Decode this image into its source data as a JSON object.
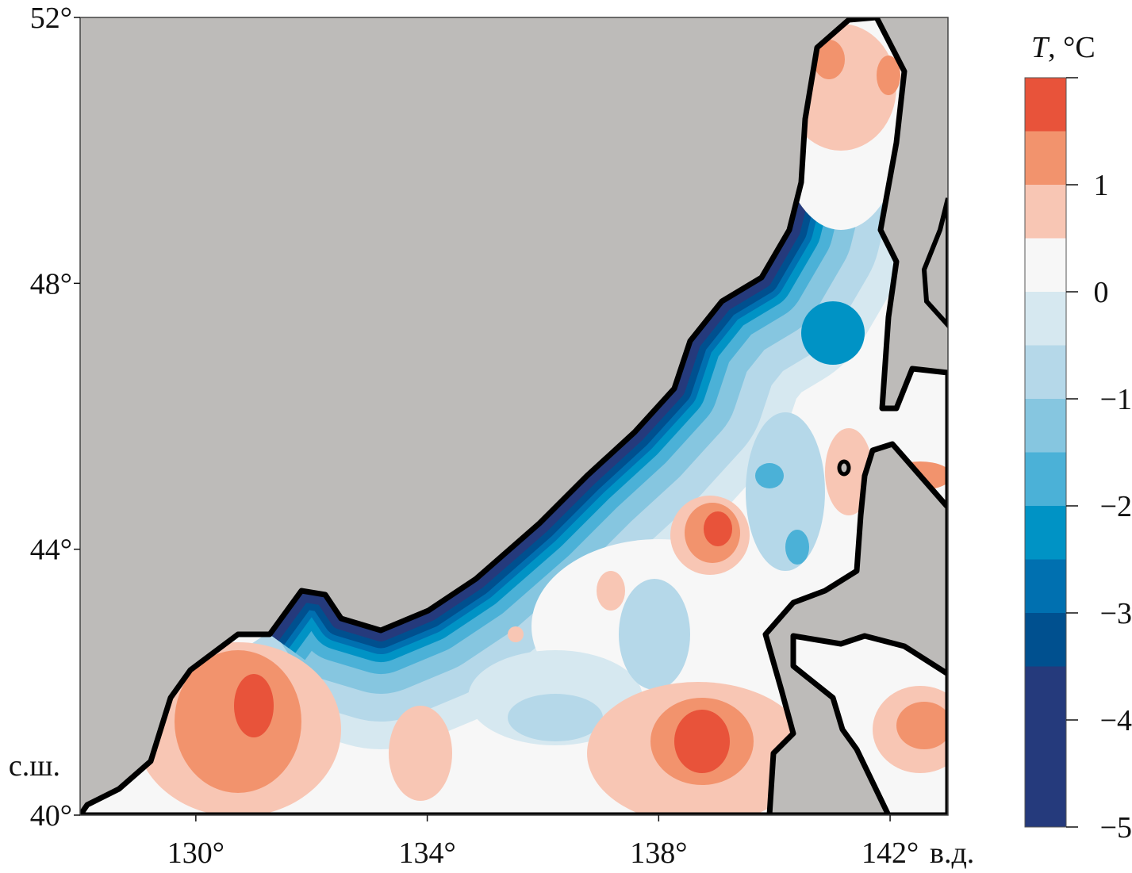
{
  "chart_data": {
    "type": "heatmap",
    "subtype": "filled-contour-map",
    "title": "",
    "colorbar": {
      "title_var": "T",
      "title_unit": ", °C",
      "ticks": [
        1,
        0,
        -1,
        -2,
        -3,
        -4,
        -5
      ],
      "tick_labels": [
        "1",
        "0",
        "−1",
        "−2",
        "−3",
        "−4",
        "−5"
      ],
      "range": [
        -5,
        2
      ],
      "levels": [
        -5,
        -4.5,
        -4,
        -3.5,
        -3,
        -2.5,
        -2,
        -1.5,
        -1,
        -0.5,
        0,
        0.5,
        1,
        1.5,
        2
      ],
      "colors": [
        "#253a7c",
        "#253a7c",
        "#253a7c",
        "#00508f",
        "#0070b0",
        "#0093c5",
        "#4bb1d7",
        "#86c6e0",
        "#b5d8e9",
        "#d6e8f0",
        "#f7f7f7",
        "#f8c6b4",
        "#f2936d",
        "#e8533a"
      ]
    },
    "x_axis": {
      "ticks": [
        130,
        134,
        138,
        142
      ],
      "tick_labels": [
        "130°",
        "134°",
        "138°",
        "142°"
      ],
      "unit_label": "в.д.",
      "range": [
        128,
        143
      ]
    },
    "y_axis": {
      "ticks": [
        52,
        48,
        44,
        40
      ],
      "tick_labels": [
        "52°",
        "48°",
        "44°",
        "40°"
      ],
      "unit_label": "с.ш.",
      "range": [
        40,
        52
      ]
    },
    "land_color": "#bdbbb9"
  }
}
